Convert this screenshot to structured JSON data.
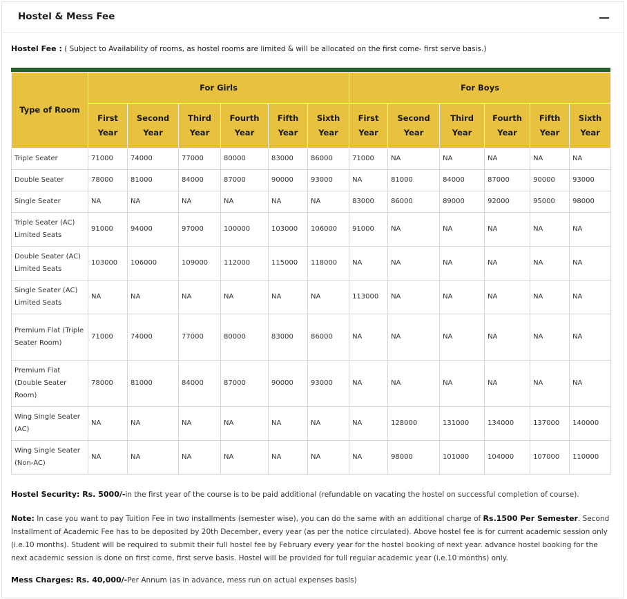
{
  "panel": {
    "title": "Hostel & Mess Fee"
  },
  "intro": {
    "label": "Hostel Fee :",
    "text": " ( Subject to Availability of rooms, as hostel rooms are limited & will be allocated on the first come- first serve basis.)"
  },
  "table": {
    "room_header": "Type of Room",
    "girls_header": "For Girls",
    "boys_header": "For Boys",
    "years": [
      [
        "First",
        "Year"
      ],
      [
        "Second",
        "Year"
      ],
      [
        "Third",
        "Year"
      ],
      [
        "Fourth",
        "Year"
      ],
      [
        "Fifth",
        "Year"
      ],
      [
        "Sixth",
        "Year"
      ]
    ],
    "rows": [
      {
        "room": "Triple Seater",
        "girls": [
          "71000",
          "74000",
          "77000",
          "80000",
          "83000",
          "86000"
        ],
        "boys": [
          "71000",
          "NA",
          "NA",
          "NA",
          "NA",
          "NA"
        ]
      },
      {
        "room": "Double Seater",
        "girls": [
          "78000",
          "81000",
          "84000",
          "87000",
          "90000",
          "93000"
        ],
        "boys": [
          "NA",
          "81000",
          "84000",
          "87000",
          "90000",
          "93000"
        ]
      },
      {
        "room": "Single Seater",
        "girls": [
          "NA",
          "NA",
          "NA",
          "NA",
          "NA",
          "NA"
        ],
        "boys": [
          "83000",
          "86000",
          "89000",
          "92000",
          "95000",
          "98000"
        ]
      },
      {
        "room": "Triple Seater (AC) Limited Seats",
        "girls": [
          "91000",
          "94000",
          "97000",
          "100000",
          "103000",
          "106000"
        ],
        "boys": [
          "91000",
          "NA",
          "NA",
          "NA",
          "NA",
          "NA"
        ]
      },
      {
        "room": "Double Seater (AC) Limited Seats",
        "girls": [
          "103000",
          "106000",
          "109000",
          "112000",
          "115000",
          "118000"
        ],
        "boys": [
          "NA",
          "NA",
          "NA",
          "NA",
          "NA",
          "NA"
        ]
      },
      {
        "room": "Single Seater (AC) Limited Seats",
        "girls": [
          "NA",
          "NA",
          "NA",
          "NA",
          "NA",
          "NA"
        ],
        "boys": [
          "113000",
          "NA",
          "NA",
          "NA",
          "NA",
          "NA"
        ]
      },
      {
        "room": "Premium Flat (Triple Seater Room)",
        "girls": [
          "71000",
          "74000",
          "77000",
          "80000",
          "83000",
          "86000"
        ],
        "boys": [
          "NA",
          "NA",
          "NA",
          "NA",
          "NA",
          "NA"
        ]
      },
      {
        "room": "Premium Flat (Double Seater Room)",
        "girls": [
          "78000",
          "81000",
          "84000",
          "87000",
          "90000",
          "93000"
        ],
        "boys": [
          "NA",
          "NA",
          "NA",
          "NA",
          "NA",
          "NA"
        ]
      },
      {
        "room": "Wing Single Seater (AC)",
        "girls": [
          "NA",
          "NA",
          "NA",
          "NA",
          "NA",
          "NA"
        ],
        "boys": [
          "NA",
          "128000",
          "131000",
          "134000",
          "137000",
          "140000"
        ]
      },
      {
        "room": "Wing Single Seater (Non-AC)",
        "girls": [
          "NA",
          "NA",
          "NA",
          "NA",
          "NA",
          "NA"
        ],
        "boys": [
          "NA",
          "98000",
          "101000",
          "104000",
          "107000",
          "110000"
        ]
      }
    ]
  },
  "security": {
    "label": "Hostel Security: Rs. 5000/-",
    "text": "in the first year of the course is to be paid additional (refundable on vacating the hostel on successful completion of course)."
  },
  "note": {
    "label": "Note:",
    "text_a": " In case you want to pay Tuition Fee in two installments (semester wise), you can do the same with an additional charge of ",
    "highlight": "Rs.1500 Per Semester",
    "text_b": ". Second Installment of Academic Fee has to be deposited by 20th December, every year (as per the notice circulated). Above hostel fee is for current academic session only (i.e.10 months). Student will be required to submit their full hostel fee by February every year for the hostel booking of next year. advance hostel booking for the next academic session is done on first come, first serve basis. Hostel will be provided for full regular academic year (i.e.10 months) only."
  },
  "mess": {
    "label": "Mess Charges: Rs. 40,000/-",
    "text": "Per Annum (as in advance, mess run on actual expenses basis)"
  },
  "colors": {
    "header_yellow": "#e8c23f",
    "bar_green": "#245f2b"
  }
}
